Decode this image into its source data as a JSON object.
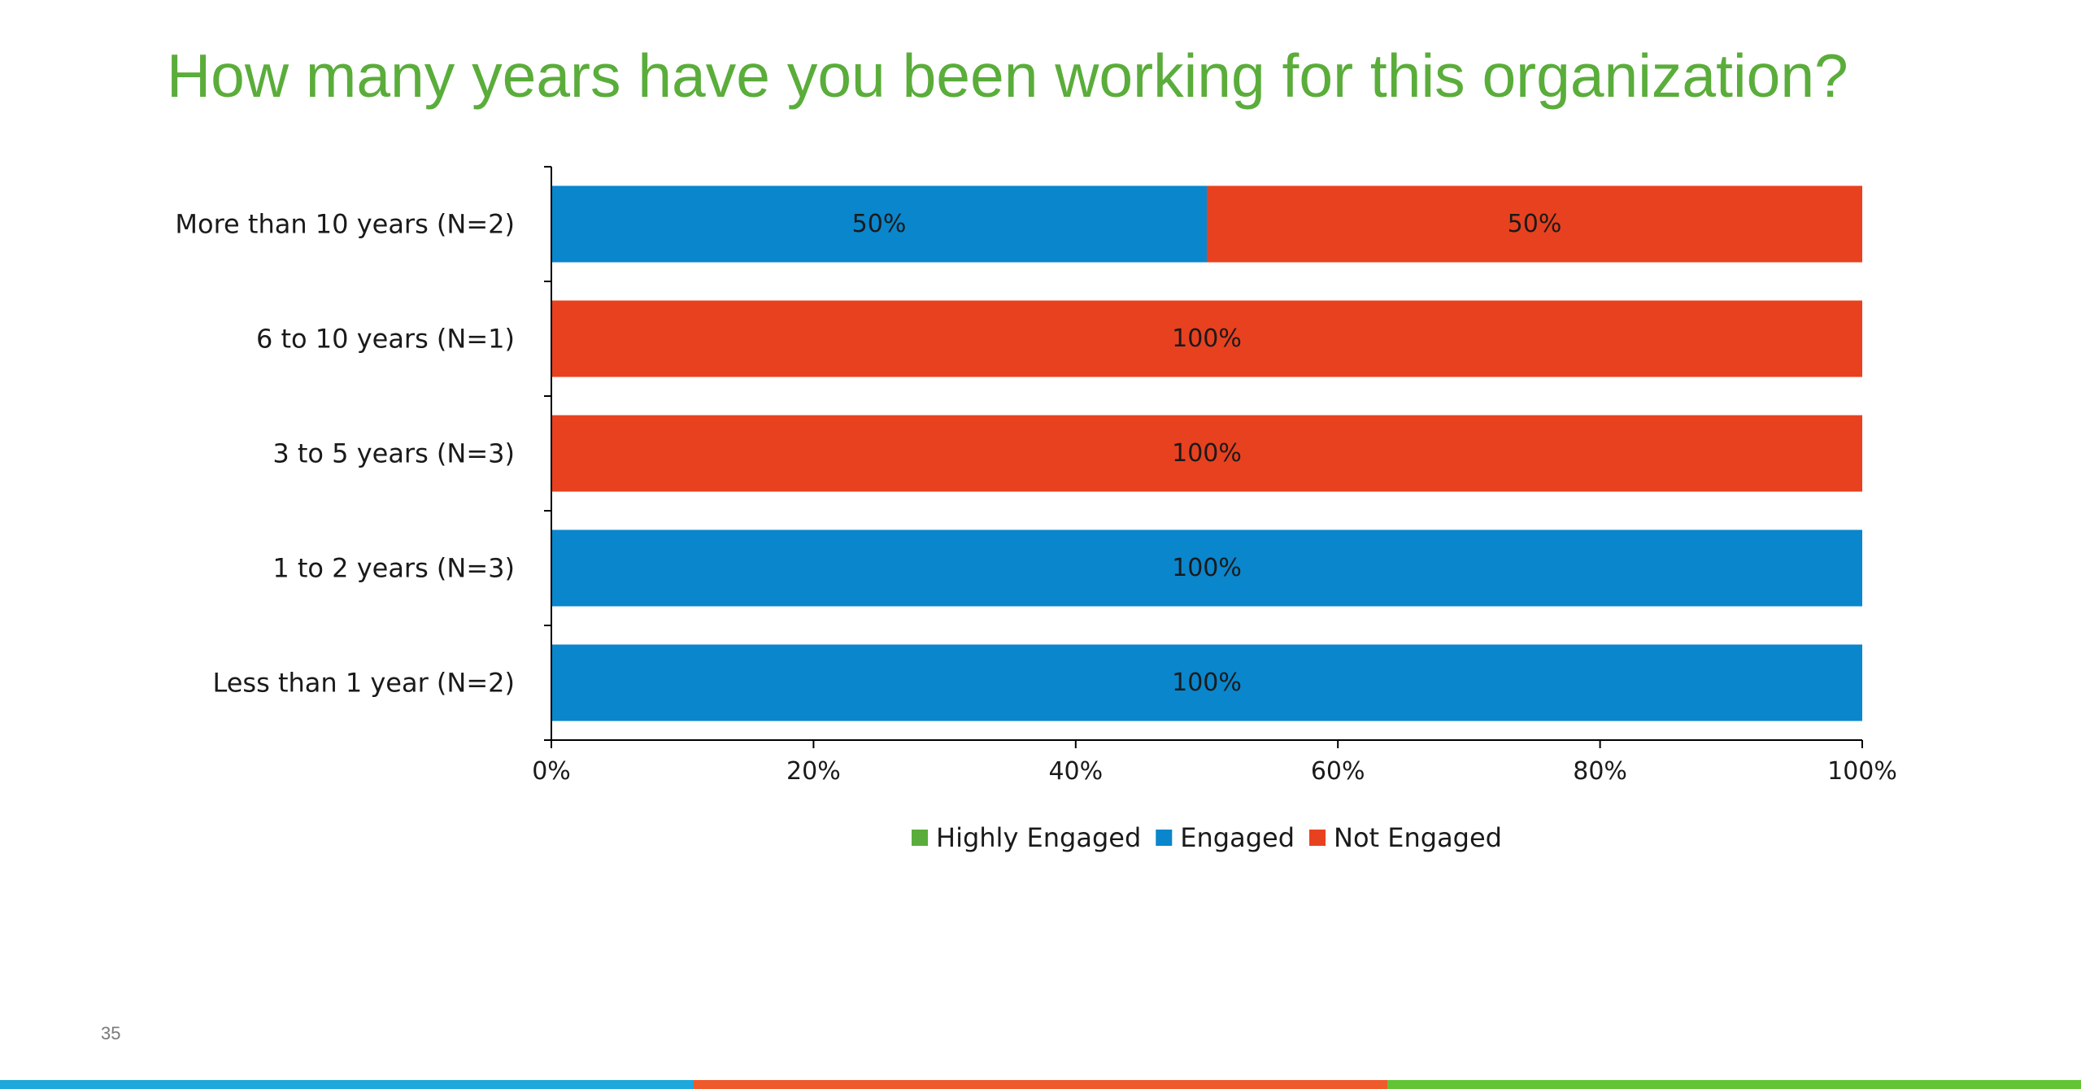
{
  "slide": {
    "title": "How many years have you been working for this organization?",
    "page_number": "35",
    "footer_colors": [
      "#1ea8dc",
      "#ef5a2a",
      "#62c335"
    ]
  },
  "chart_data": {
    "type": "bar",
    "orientation": "horizontal",
    "stacked": true,
    "title": "",
    "xlabel": "",
    "ylabel": "",
    "xlim": [
      0,
      100
    ],
    "x_ticks": [
      "0%",
      "20%",
      "40%",
      "60%",
      "80%",
      "100%"
    ],
    "categories": [
      "More than 10 years (N=2)",
      "6 to 10 years (N=1)",
      "3 to 5 years (N=3)",
      "1 to 2 years (N=3)",
      "Less than 1 year (N=2)"
    ],
    "series": [
      {
        "name": "Highly Engaged",
        "color": "#5aad3a",
        "values": [
          0,
          0,
          0,
          0,
          0
        ],
        "labels": [
          "",
          "",
          "",
          "",
          ""
        ]
      },
      {
        "name": "Engaged",
        "color": "#0a86cc",
        "values": [
          50,
          0,
          0,
          100,
          100
        ],
        "labels": [
          "50%",
          "",
          "",
          "100%",
          "100%"
        ]
      },
      {
        "name": "Not Engaged",
        "color": "#e8411f",
        "values": [
          50,
          100,
          100,
          0,
          0
        ],
        "labels": [
          "50%",
          "100%",
          "100%",
          "",
          ""
        ]
      }
    ],
    "legend_position": "bottom",
    "grid": false
  }
}
